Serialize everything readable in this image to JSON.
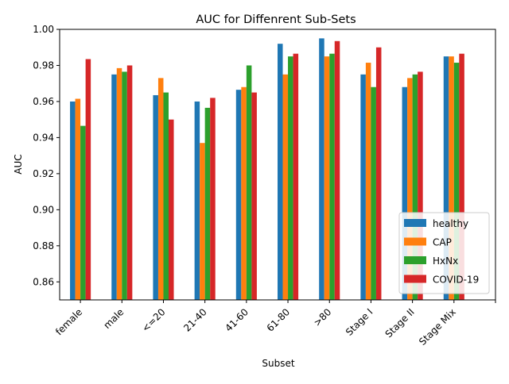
{
  "chart_data": {
    "type": "bar",
    "title": "AUC for Diffenrent Sub-Sets",
    "xlabel": "Subset",
    "ylabel": "AUC",
    "ylim": [
      0.85,
      1.0
    ],
    "yticks": [
      "0.86",
      "0.88",
      "0.90",
      "0.92",
      "0.94",
      "0.96",
      "0.98",
      "1.00"
    ],
    "categories": [
      "female",
      "male",
      "<=20",
      "21-40",
      "41-60",
      "61-80",
      ">80",
      "Stage I",
      "Stage II",
      "Stage Mix"
    ],
    "series": [
      {
        "name": "healthy",
        "color": "#1f77b4",
        "values": [
          0.96,
          0.975,
          0.9635,
          0.96,
          0.9665,
          0.992,
          0.995,
          0.975,
          0.968,
          0.985
        ]
      },
      {
        "name": "CAP",
        "color": "#ff7f0e",
        "values": [
          0.9615,
          0.9785,
          0.973,
          0.937,
          0.968,
          0.975,
          0.985,
          0.9815,
          0.973,
          0.985
        ]
      },
      {
        "name": "HxNx",
        "color": "#2ca02c",
        "values": [
          0.9465,
          0.9765,
          0.965,
          0.9565,
          0.98,
          0.985,
          0.9865,
          0.968,
          0.975,
          0.9815
        ]
      },
      {
        "name": "COVID-19",
        "color": "#d62728",
        "values": [
          0.9835,
          0.98,
          0.95,
          0.962,
          0.965,
          0.9865,
          0.9935,
          0.99,
          0.9765,
          0.9865
        ]
      }
    ],
    "grid": false,
    "legend_position": "lower-right"
  }
}
